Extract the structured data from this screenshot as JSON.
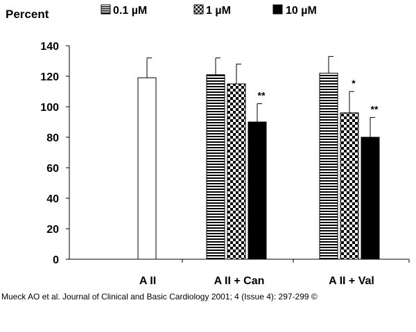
{
  "chart_data": {
    "type": "bar",
    "ylabel": "Percent",
    "ylim": [
      0,
      140
    ],
    "yticks": [
      0,
      20,
      40,
      60,
      80,
      100,
      120,
      140
    ],
    "grid": false,
    "legend": "top",
    "categories": [
      "A II",
      "A II + Can",
      "A II + Val"
    ],
    "control": {
      "name": "A II",
      "value": 119,
      "error": 13
    },
    "series": [
      {
        "name": "0.1 µM",
        "pattern": "horizontal-stripes",
        "values": [
          null,
          121,
          122
        ],
        "errors": [
          null,
          11,
          11
        ],
        "annotations": [
          null,
          "",
          ""
        ]
      },
      {
        "name": "1 µM",
        "pattern": "checkerboard",
        "values": [
          null,
          115,
          96
        ],
        "errors": [
          null,
          13,
          14
        ],
        "annotations": [
          null,
          "",
          "*"
        ]
      },
      {
        "name": "10 µM",
        "pattern": "solid-black",
        "values": [
          null,
          90,
          80
        ],
        "errors": [
          null,
          12,
          13
        ],
        "annotations": [
          null,
          "**",
          "**"
        ]
      }
    ]
  },
  "citation": "Mueck AO et al. Journal of Clinical and Basic Cardiology 2001; 4 (Issue 4): 297-299 ©"
}
